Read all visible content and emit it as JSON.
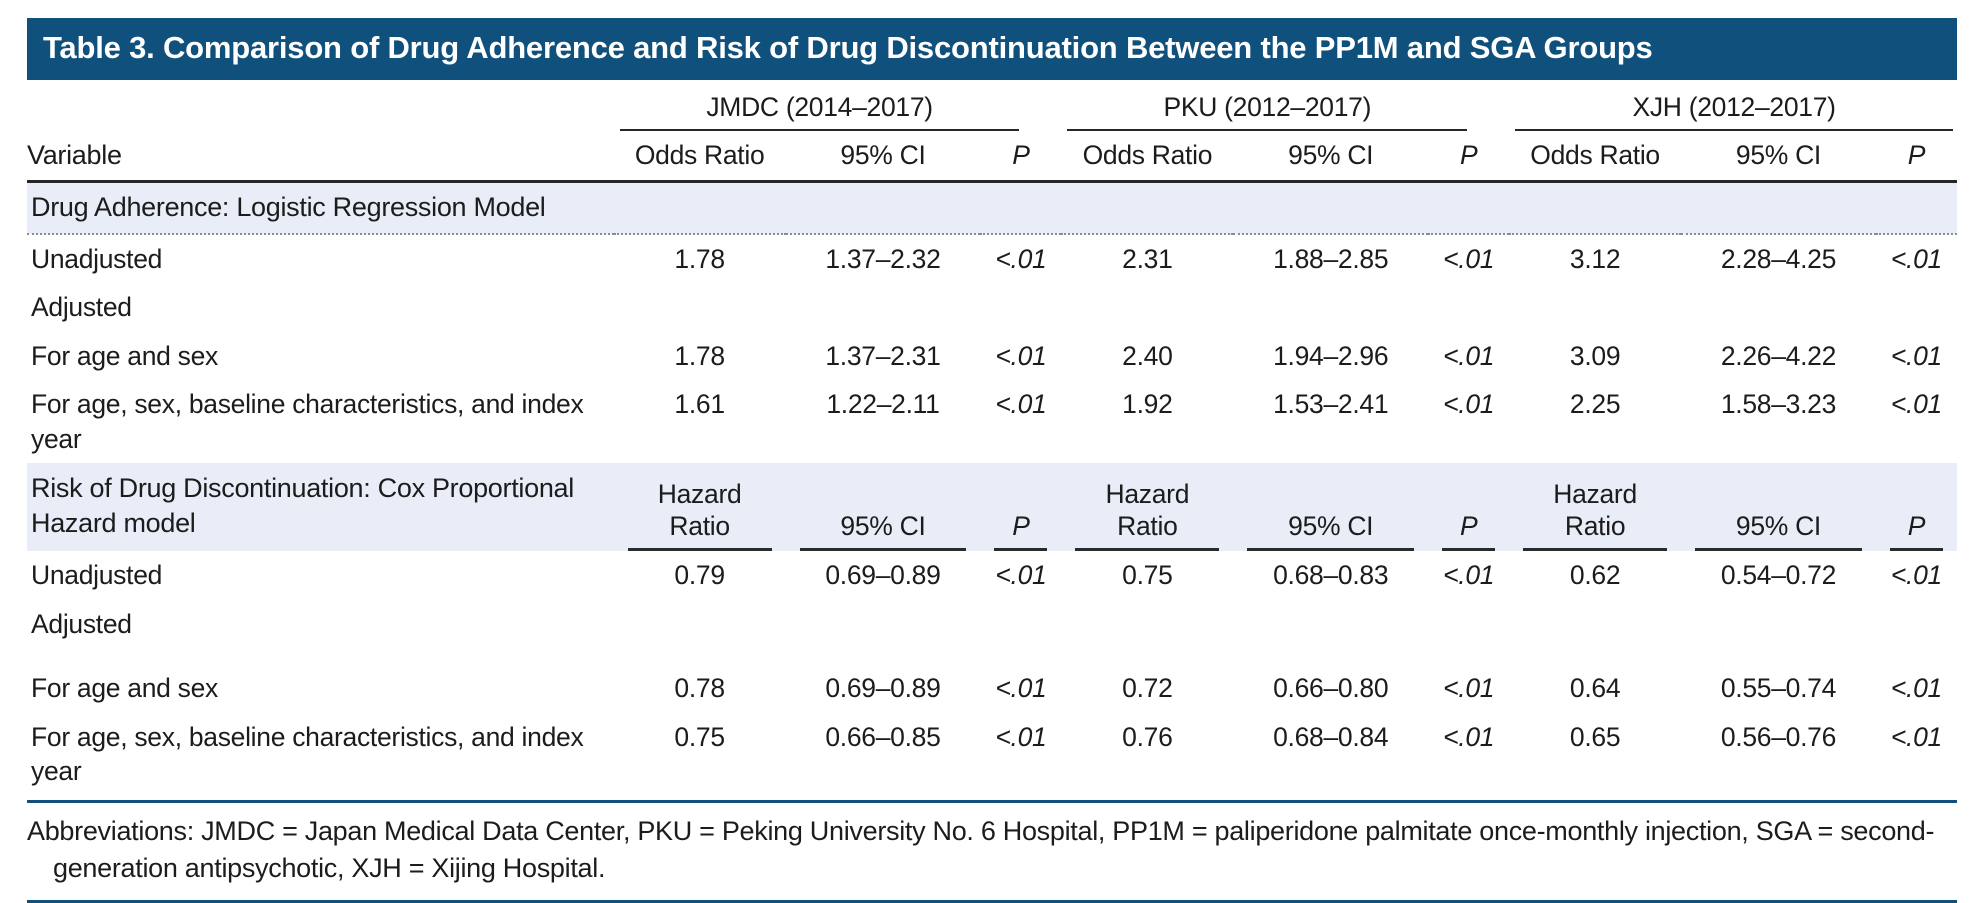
{
  "title": "Table 3. Comparison of Drug Adherence and Risk of Drug Discontinuation Between the PP1M and SGA Groups",
  "columns": {
    "variable_label": "Variable",
    "groups": [
      {
        "label": "JMDC (2014–2017)",
        "sub": [
          "Odds Ratio",
          "95% CI",
          "P"
        ]
      },
      {
        "label": "PKU (2012–2017)",
        "sub": [
          "Odds Ratio",
          "95% CI",
          "P"
        ]
      },
      {
        "label": "XJH (2012–2017)",
        "sub": [
          "Odds Ratio",
          "95% CI",
          "P"
        ]
      }
    ]
  },
  "sections": [
    {
      "header": {
        "label": "Drug Adherence: Logistic Regression Model",
        "sub_headers": null
      },
      "rows": [
        {
          "label": "Unadjusted",
          "indent": 0,
          "values": [
            "1.78",
            "1.37–2.32",
            "<.01",
            "2.31",
            "1.88–2.85",
            "<.01",
            "3.12",
            "2.28–4.25",
            "<.01"
          ]
        },
        {
          "label": "Adjusted",
          "indent": 0,
          "values": []
        },
        {
          "label": "For age and sex",
          "indent": 1,
          "values": [
            "1.78",
            "1.37–2.31",
            "<.01",
            "2.40",
            "1.94–2.96",
            "<.01",
            "3.09",
            "2.26–4.22",
            "<.01"
          ]
        },
        {
          "label": "For age, sex, baseline characteristics, and index year",
          "indent": 1,
          "values": [
            "1.61",
            "1.22–2.11",
            "<.01",
            "1.92",
            "1.53–2.41",
            "<.01",
            "2.25",
            "1.58–3.23",
            "<.01"
          ]
        }
      ]
    },
    {
      "header": {
        "label": "Risk of Drug Discontinuation: Cox Proportional Hazard model",
        "sub_headers": [
          "Hazard Ratio",
          "95% CI",
          "P",
          "Hazard Ratio",
          "95% CI",
          "P",
          "Hazard Ratio",
          "95% CI",
          "P"
        ]
      },
      "rows": [
        {
          "label": "Unadjusted",
          "indent": 0,
          "values": [
            "0.79",
            "0.69–0.89",
            "<.01",
            "0.75",
            "0.68–0.83",
            "<.01",
            "0.62",
            "0.54–0.72",
            "<.01"
          ]
        },
        {
          "label": "Adjusted",
          "indent": 0,
          "values": [],
          "spacer_after": true
        },
        {
          "label": "For age and sex",
          "indent": 1,
          "values": [
            "0.78",
            "0.69–0.89",
            "<.01",
            "0.72",
            "0.66–0.80",
            "<.01",
            "0.64",
            "0.55–0.74",
            "<.01"
          ]
        },
        {
          "label": "For age, sex, baseline characteristics, and index year",
          "indent": 1,
          "values": [
            "0.75",
            "0.66–0.85",
            "<.01",
            "0.76",
            "0.68–0.84",
            "<.01",
            "0.65",
            "0.56–0.76",
            "<.01"
          ]
        }
      ]
    }
  ],
  "footnote": "Abbreviations: JMDC = Japan Medical Data Center, PKU = Peking University No. 6 Hospital, PP1M = paliperidone palmitate once-monthly injection, SGA = second-generation antipsychotic, XJH = Xijing Hospital.",
  "colors": {
    "title_bar": "#10507C",
    "band": "#E8EDF7",
    "rule_blue": "#10507C",
    "rule_dark": "#262626"
  }
}
